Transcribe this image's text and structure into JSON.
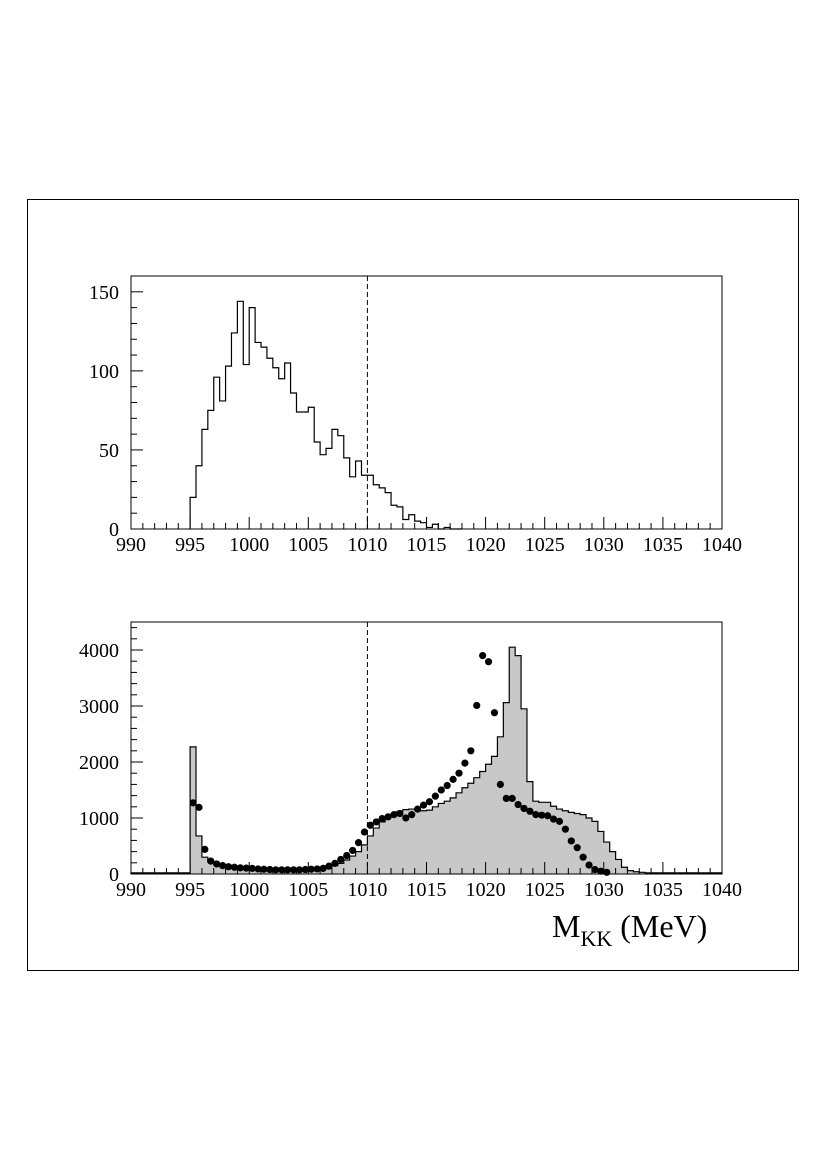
{
  "figure": {
    "xlabel_main": "M",
    "xlabel_sub": "KK",
    "xlabel_unit": "(MeV)"
  },
  "chart_data": [
    {
      "type": "histogram",
      "panel": "top",
      "xlim": [
        990,
        1040
      ],
      "ylim": [
        0,
        160
      ],
      "x_ticks": [
        990,
        995,
        1000,
        1005,
        1010,
        1015,
        1020,
        1025,
        1030,
        1035,
        1040
      ],
      "y_ticks": [
        0,
        50,
        100,
        150
      ],
      "x_tick_labels": [
        "990",
        "995",
        "1000",
        "1005",
        "1010",
        "1015",
        "1020",
        "1025",
        "1030",
        "1035",
        "1040"
      ],
      "y_tick_labels": [
        "0",
        "50",
        "100",
        "150"
      ],
      "vline": 1010,
      "bin_width": 0.5,
      "bin_start": 995,
      "values": [
        20,
        40,
        63,
        75,
        96,
        81,
        103,
        124,
        144,
        104,
        140,
        118,
        115,
        108,
        102,
        95,
        105,
        86,
        74,
        74,
        77,
        55,
        47,
        51,
        63,
        59,
        45,
        33,
        43,
        34,
        34,
        28,
        26,
        23,
        15,
        14,
        6,
        9,
        5,
        4,
        1,
        3,
        0,
        1,
        0,
        0
      ]
    },
    {
      "type": "histogram+points",
      "panel": "bottom",
      "xlim": [
        990,
        1040
      ],
      "ylim": [
        0,
        4500
      ],
      "x_ticks": [
        990,
        995,
        1000,
        1005,
        1010,
        1015,
        1020,
        1025,
        1030,
        1035,
        1040
      ],
      "y_ticks": [
        0,
        1000,
        2000,
        3000,
        4000
      ],
      "x_tick_labels": [
        "990",
        "995",
        "1000",
        "1005",
        "1010",
        "1015",
        "1020",
        "1025",
        "1030",
        "1035",
        "1040"
      ],
      "y_tick_labels": [
        "0",
        "1000",
        "2000",
        "3000",
        "4000"
      ],
      "vline": 1010,
      "bin_width": 0.5,
      "bin_start": 990,
      "values": [
        20,
        20,
        20,
        20,
        20,
        20,
        20,
        20,
        20,
        20,
        2270,
        680,
        300,
        220,
        180,
        160,
        150,
        140,
        130,
        120,
        110,
        105,
        100,
        95,
        90,
        85,
        80,
        80,
        80,
        80,
        85,
        90,
        100,
        120,
        150,
        190,
        250,
        320,
        400,
        520,
        680,
        820,
        930,
        1010,
        1070,
        1120,
        1150,
        1160,
        1150,
        1130,
        1140,
        1200,
        1260,
        1300,
        1360,
        1450,
        1540,
        1620,
        1720,
        1830,
        1960,
        2100,
        2450,
        3060,
        4050,
        3900,
        2950,
        1650,
        1300,
        1280,
        1280,
        1210,
        1160,
        1130,
        1100,
        1080,
        1060,
        1000,
        940,
        760,
        570,
        400,
        260,
        120,
        60,
        40,
        30,
        20,
        20,
        20,
        20,
        20,
        20,
        20,
        20,
        20,
        20,
        20,
        20,
        20
      ],
      "points_x": [
        995.25,
        995.75,
        996.25,
        996.75,
        997.25,
        997.75,
        998.25,
        998.75,
        999.25,
        999.75,
        1000.25,
        1000.75,
        1001.25,
        1001.75,
        1002.25,
        1002.75,
        1003.25,
        1003.75,
        1004.25,
        1004.75,
        1005.25,
        1005.75,
        1006.25,
        1006.75,
        1007.25,
        1007.75,
        1008.25,
        1008.75,
        1009.25,
        1009.75,
        1010.25,
        1010.75,
        1011.25,
        1011.75,
        1012.25,
        1012.75,
        1013.25,
        1013.75,
        1014.25,
        1014.75,
        1015.25,
        1015.75,
        1016.25,
        1016.75,
        1017.25,
        1017.75,
        1018.25,
        1018.75,
        1019.25,
        1019.75,
        1020.25,
        1020.75,
        1021.25,
        1021.75,
        1022.25,
        1022.75,
        1023.25,
        1023.75,
        1024.25,
        1024.75,
        1025.25,
        1025.75,
        1026.25,
        1026.75,
        1027.25,
        1027.75,
        1028.25,
        1028.75,
        1029.25,
        1029.75,
        1030.25
      ],
      "points_y": [
        1270,
        1190,
        440,
        230,
        180,
        150,
        130,
        120,
        110,
        105,
        100,
        90,
        85,
        80,
        75,
        75,
        75,
        75,
        75,
        80,
        85,
        90,
        100,
        140,
        190,
        260,
        330,
        420,
        560,
        750,
        870,
        930,
        990,
        1020,
        1060,
        1080,
        1000,
        1060,
        1160,
        1230,
        1290,
        1390,
        1500,
        1580,
        1690,
        1800,
        1980,
        2200,
        3010,
        3900,
        3790,
        2880,
        1600,
        1350,
        1350,
        1240,
        1170,
        1120,
        1060,
        1050,
        1040,
        980,
        940,
        800,
        590,
        470,
        300,
        160,
        80,
        50,
        30
      ]
    }
  ]
}
